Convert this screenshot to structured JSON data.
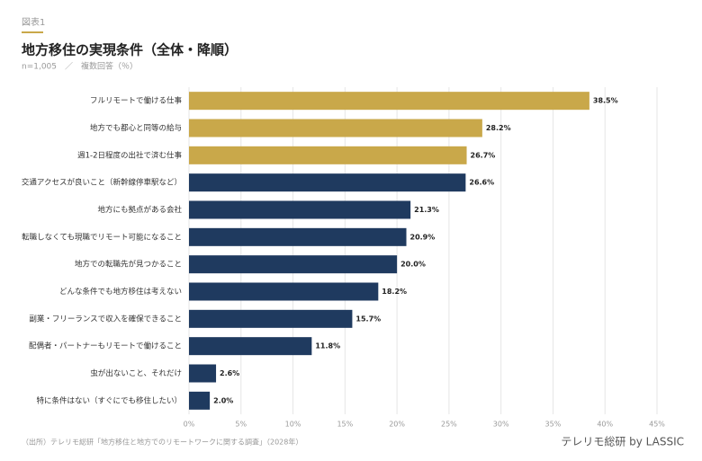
{
  "chart_data": {
    "type": "bar",
    "orientation": "horizontal",
    "label": "図表1",
    "title": "地方移住の実現条件（全体・降順）",
    "subtitle": "n=1,005　／　複数回答（％）",
    "source": "（出所）テレリモ総研「地方移住と地方でのリモートワークに関する調査」（2028年）",
    "brand": "テレリモ総研 by LASSIC",
    "categories": [
      "フルリモートで働ける仕事",
      "地方でも都心と同等の給与",
      "週1-2日程度の出社で済む仕事",
      "交通アクセスが良いこと（新幹線停車駅など）",
      "地方にも拠点がある会社",
      "転職しなくても現職でリモート可能になること",
      "地方での転職先が見つかること",
      "どんな条件でも地方移住は考えない",
      "副業・フリーランスで収入を確保できること",
      "配偶者・パートナーもリモートで働けること",
      "虫が出ないこと、それだけ",
      "特に条件はない（すぐにでも移住したい）"
    ],
    "values": [
      38.5,
      28.2,
      26.7,
      26.6,
      21.3,
      20.9,
      20.0,
      18.2,
      15.7,
      11.8,
      2.6,
      2.0
    ],
    "value_labels": [
      "38.5%",
      "28.2%",
      "26.7%",
      "26.6%",
      "21.3%",
      "20.9%",
      "20.0%",
      "18.2%",
      "15.7%",
      "11.8%",
      "2.6%",
      "2.0%"
    ],
    "colors": [
      "#c9a84a",
      "#c9a84a",
      "#c9a84a",
      "#1f3a5f",
      "#1f3a5f",
      "#1f3a5f",
      "#1f3a5f",
      "#1f3a5f",
      "#1f3a5f",
      "#1f3a5f",
      "#1f3a5f",
      "#1f3a5f"
    ],
    "xlim": [
      0,
      45
    ],
    "xticks": [
      {
        "value": 0,
        "label": "0%"
      },
      {
        "value": 5,
        "label": "5%"
      },
      {
        "value": 10,
        "label": "10%"
      },
      {
        "value": 15,
        "label": "15%"
      },
      {
        "value": 20,
        "label": "20%"
      },
      {
        "value": 25,
        "label": "25%"
      },
      {
        "value": 30,
        "label": "30%"
      },
      {
        "value": 35,
        "label": "35%"
      },
      {
        "value": 40,
        "label": "40%"
      },
      {
        "value": 45,
        "label": "45%"
      }
    ],
    "grid": true
  }
}
